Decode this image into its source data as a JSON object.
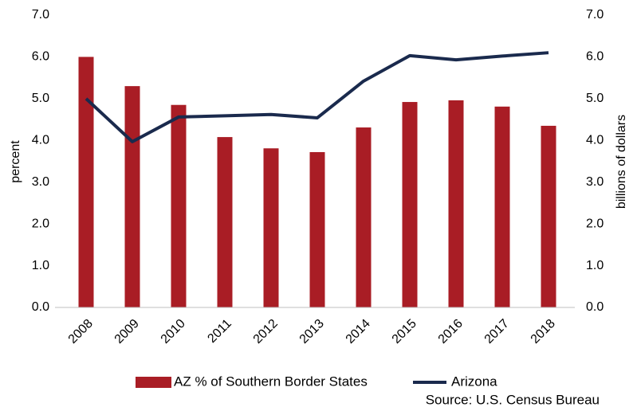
{
  "chart_data": {
    "type": "bar_line",
    "categories": [
      "2008",
      "2009",
      "2010",
      "2011",
      "2012",
      "2013",
      "2014",
      "2015",
      "2016",
      "2017",
      "2018"
    ],
    "series": [
      {
        "name": "AZ % of Southern Border States",
        "type": "bar",
        "color": "#a91d25",
        "values": [
          6.0,
          5.3,
          4.85,
          4.08,
          3.81,
          3.72,
          4.31,
          4.92,
          4.96,
          4.81,
          4.35
        ]
      },
      {
        "name": "Arizona",
        "type": "line",
        "axis": "y2",
        "color": "#1a2a4d",
        "values": [
          5.0,
          3.97,
          4.56,
          4.59,
          4.62,
          4.54,
          5.42,
          6.03,
          5.93,
          6.02,
          6.1
        ]
      }
    ],
    "y_label": "percent",
    "y2_label": "billions of dollars",
    "ylim": [
      0,
      7
    ],
    "y2lim": [
      0,
      7
    ],
    "yticks": [
      {
        "value": 0,
        "label": "0.0"
      },
      {
        "value": 1,
        "label": "1.0"
      },
      {
        "value": 2,
        "label": "2.0"
      },
      {
        "value": 3,
        "label": "3.0"
      },
      {
        "value": 4,
        "label": "4.0"
      },
      {
        "value": 5,
        "label": "5.0"
      },
      {
        "value": 6,
        "label": "6.0"
      },
      {
        "value": 7,
        "label": "7.0"
      }
    ],
    "y2ticks": [
      {
        "value": 0,
        "label": "0.0"
      },
      {
        "value": 1,
        "label": "1.0"
      },
      {
        "value": 2,
        "label": "2.0"
      },
      {
        "value": 3,
        "label": "3.0"
      },
      {
        "value": 4,
        "label": "4.0"
      },
      {
        "value": 5,
        "label": "5.0"
      },
      {
        "value": 6,
        "label": "6.0"
      },
      {
        "value": 7,
        "label": "7.0"
      }
    ],
    "grid": false,
    "legend": "bottom",
    "source": "Source: U.S. Census Bureau"
  }
}
